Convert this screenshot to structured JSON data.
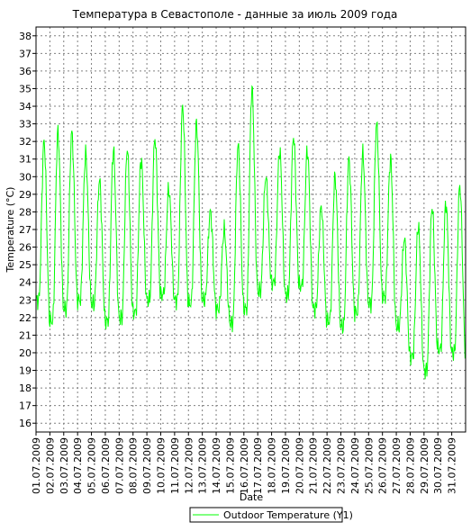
{
  "chart_data": {
    "type": "line",
    "title": "Температура в Севастополе - данные за июль 2009 года",
    "xlabel": "Date",
    "ylabel": "Temperature (°C)",
    "ylim": [
      15.5,
      38.5
    ],
    "yticks": [
      16,
      17,
      18,
      19,
      20,
      21,
      22,
      23,
      24,
      25,
      26,
      27,
      28,
      29,
      30,
      31,
      32,
      33,
      34,
      35,
      36,
      37,
      38
    ],
    "xlim": [
      0,
      31
    ],
    "categories": [
      "01.07.2009",
      "02.07.2009",
      "03.07.2009",
      "04.07.2009",
      "05.07.2009",
      "06.07.2009",
      "07.07.2009",
      "08.07.2009",
      "09.07.2009",
      "10.07.2009",
      "11.07.2009",
      "12.07.2009",
      "13.07.2009",
      "14.07.2009",
      "15.07.2009",
      "16.07.2009",
      "17.07.2009",
      "18.07.2009",
      "19.07.2009",
      "20.07.2009",
      "21.07.2009",
      "22.07.2009",
      "23.07.2009",
      "24.07.2009",
      "25.07.2009",
      "26.07.2009",
      "27.07.2009",
      "28.07.2009",
      "29.07.2009",
      "30.07.2009",
      "31.07.2009"
    ],
    "grid": true,
    "legend_position": "bottom",
    "colors": {
      "series": "#00ff00",
      "grid": "#808080",
      "axis": "#000000"
    },
    "series": [
      {
        "name": "Outdoor Temperature (Y1)",
        "daily_min": [
          23.0,
          21.8,
          22.5,
          23.0,
          22.8,
          21.8,
          22.0,
          22.3,
          23.0,
          23.3,
          23.0,
          22.8,
          23.0,
          22.5,
          21.7,
          22.5,
          23.5,
          24.0,
          23.3,
          23.8,
          22.5,
          21.8,
          21.5,
          22.3,
          22.8,
          23.2,
          21.5,
          19.8,
          19.0,
          20.2,
          20.0
        ],
        "daily_max": [
          32.0,
          32.5,
          32.5,
          31.3,
          29.8,
          31.5,
          31.6,
          31.0,
          32.2,
          29.3,
          34.0,
          33.0,
          28.0,
          27.0,
          31.8,
          35.0,
          30.0,
          31.5,
          32.3,
          31.5,
          28.3,
          30.0,
          31.0,
          31.3,
          33.0,
          31.0,
          26.5,
          27.2,
          28.3,
          28.5,
          29.5
        ]
      }
    ]
  }
}
